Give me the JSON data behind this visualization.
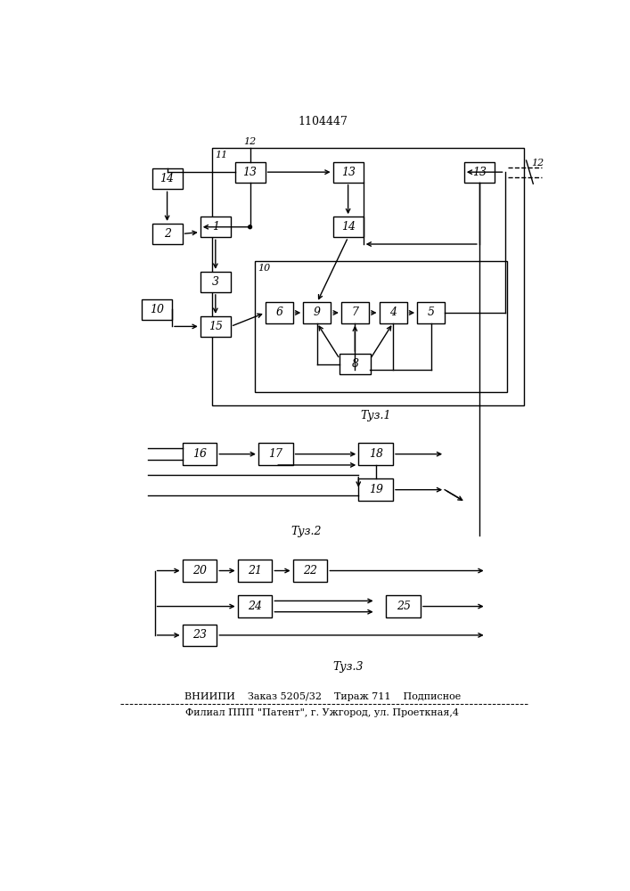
{
  "title": "1104447",
  "bg_color": "#ffffff",
  "line_color": "#000000",
  "box_color": "#ffffff",
  "fig1_label": "Τуз.1",
  "fig2_label": "Τуз.2",
  "fig3_label": "Τуз.3",
  "bottom_text1": "ВНИИПИ    Заказ 5205/32    Тираж 711    Подписное",
  "bottom_text2": "Филиал ППП \"Патент\", г. Ужгород, ул. Проеткная,4"
}
